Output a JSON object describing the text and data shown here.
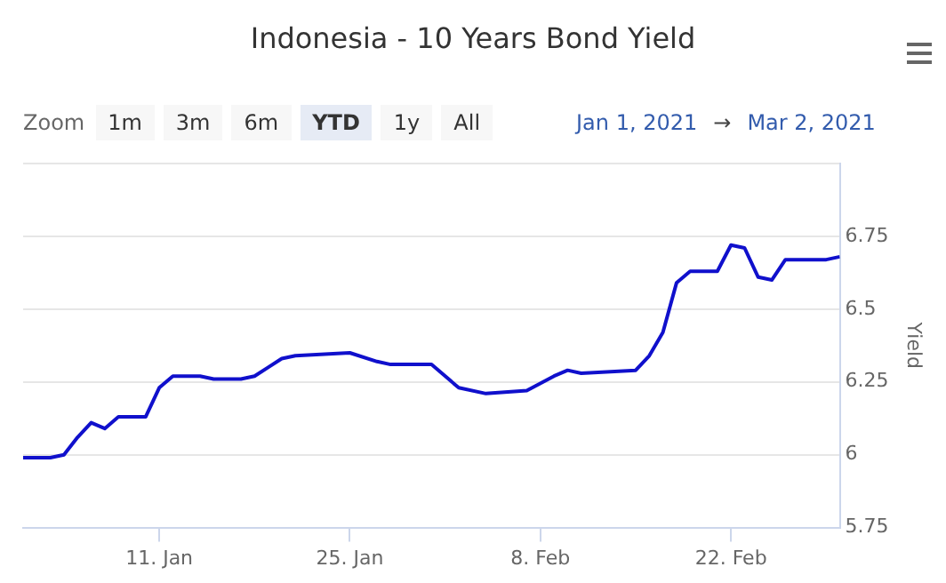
{
  "chart_data": {
    "type": "line",
    "title": "Indonesia - 10 Years Bond Yield",
    "ylabel": "Yield",
    "annotations": [
      "Zoom",
      "1m",
      "3m",
      "6m",
      "YTD",
      "1y",
      "All",
      "Jan 1, 2021",
      "→",
      "Mar 2, 2021"
    ],
    "x": [
      "2021-01-01",
      "2021-01-03",
      "2021-01-04",
      "2021-01-05",
      "2021-01-06",
      "2021-01-07",
      "2021-01-08",
      "2021-01-10",
      "2021-01-11",
      "2021-01-12",
      "2021-01-14",
      "2021-01-15",
      "2021-01-17",
      "2021-01-18",
      "2021-01-19",
      "2021-01-20",
      "2021-01-21",
      "2021-01-25",
      "2021-01-27",
      "2021-01-28",
      "2021-01-31",
      "2021-02-02",
      "2021-02-04",
      "2021-02-07",
      "2021-02-09",
      "2021-02-10",
      "2021-02-11",
      "2021-02-15",
      "2021-02-16",
      "2021-02-17",
      "2021-02-18",
      "2021-02-19",
      "2021-02-21",
      "2021-02-22",
      "2021-02-23",
      "2021-02-24",
      "2021-02-25",
      "2021-02-26",
      "2021-03-01",
      "2021-03-02"
    ],
    "series": [
      {
        "color": "#1010cc",
        "values": [
          5.99,
          5.99,
          6.0,
          6.06,
          6.11,
          6.09,
          6.13,
          6.13,
          6.23,
          6.27,
          6.27,
          6.26,
          6.26,
          6.27,
          6.3,
          6.33,
          6.34,
          6.35,
          6.32,
          6.31,
          6.31,
          6.23,
          6.21,
          6.22,
          6.27,
          6.29,
          6.28,
          6.29,
          6.34,
          6.42,
          6.59,
          6.63,
          6.63,
          6.72,
          6.71,
          6.61,
          6.6,
          6.67,
          6.67,
          6.68
        ]
      }
    ],
    "xlim": [
      "2021-01-01",
      "2021-03-02"
    ],
    "xticks": [
      {
        "value": "2021-01-11",
        "label": "11. Jan"
      },
      {
        "value": "2021-01-25",
        "label": "25. Jan"
      },
      {
        "value": "2021-02-08",
        "label": "8. Feb"
      },
      {
        "value": "2021-02-22",
        "label": "22. Feb"
      }
    ],
    "ylim": [
      5.75,
      7
    ],
    "yticks": [
      5.75,
      6,
      6.25,
      6.5,
      6.75,
      {
        "value": 7,
        "label": null
      }
    ],
    "grid": "y",
    "legend": false,
    "marker": "none",
    "line_style": "solid"
  }
}
